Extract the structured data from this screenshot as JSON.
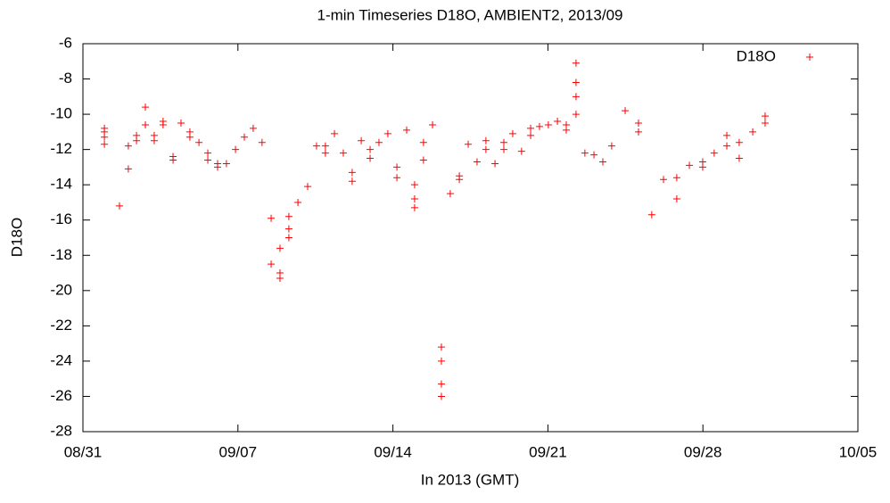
{
  "chart_data": {
    "type": "scatter",
    "title": "1-min Timeseries D18O, AMBIENT2, 2013/09",
    "xlabel": "In 2013 (GMT)",
    "ylabel": "D18O",
    "x": [
      0.97,
      0.97,
      0.97,
      0.97,
      1.65,
      2.05,
      2.05,
      2.42,
      2.42,
      2.82,
      2.82,
      3.22,
      3.22,
      3.62,
      3.62,
      4.07,
      4.07,
      4.43,
      4.83,
      4.83,
      5.24,
      5.64,
      5.64,
      6.08,
      6.08,
      6.48,
      6.89,
      7.29,
      7.69,
      8.09,
      8.5,
      8.5,
      8.9,
      8.9,
      8.9,
      9.3,
      9.3,
      9.3,
      9.71,
      10.15,
      10.55,
      10.95,
      10.95,
      11.36,
      11.76,
      12.16,
      12.16,
      12.57,
      12.97,
      12.97,
      13.37,
      13.77,
      14.18,
      14.18,
      14.62,
      14.98,
      14.98,
      14.98,
      15.38,
      15.38,
      15.79,
      16.19,
      16.19,
      16.19,
      16.19,
      16.59,
      17,
      17,
      17.4,
      17.8,
      18.2,
      18.2,
      18.61,
      19.01,
      19.01,
      19.41,
      19.81,
      20.22,
      20.22,
      20.62,
      21.02,
      21.43,
      21.83,
      21.83,
      22.27,
      22.27,
      22.27,
      22.27,
      22.67,
      23.08,
      23.48,
      23.88,
      24.49,
      25.09,
      25.09,
      25.69,
      26.22,
      26.82,
      26.82,
      27.39,
      27.99,
      27.99,
      28.51,
      29.08,
      29.08,
      29.64,
      29.64,
      30.25,
      30.81,
      30.81
    ],
    "series": [
      {
        "name": "D18O",
        "color": "#ff0000",
        "values": [
          -11,
          -11.3,
          -11.7,
          -10.8,
          -15.2,
          -11.8,
          -13.1,
          -11.5,
          -11.2,
          -10.6,
          -9.6,
          -11.2,
          -11.5,
          -10.6,
          -10.4,
          -12.4,
          -12.6,
          -10.5,
          -11,
          -11.3,
          -11.6,
          -12.2,
          -12.6,
          -13,
          -12.8,
          -12.8,
          -12,
          -11.3,
          -10.8,
          -11.6,
          -18.5,
          -15.9,
          -19,
          -19.3,
          -17.6,
          -16.5,
          -15.8,
          -17,
          -15,
          -14.1,
          -11.8,
          -12.2,
          -11.8,
          -11.1,
          -12.2,
          -13.8,
          -13.3,
          -11.5,
          -12.5,
          -12,
          -11.6,
          -11.1,
          -13.6,
          -13,
          -10.9,
          -14.8,
          -15.3,
          -14,
          -11.6,
          -12.6,
          -10.6,
          -24,
          -25.3,
          -23.2,
          -26,
          -14.5,
          -13.5,
          -13.7,
          -11.7,
          -12.7,
          -12,
          -11.5,
          -12.8,
          -12,
          -11.6,
          -11.1,
          -12.1,
          -11.2,
          -10.8,
          -10.7,
          -10.6,
          -10.4,
          -10.6,
          -10.9,
          -10,
          -7.1,
          -8.2,
          -9,
          -12.2,
          -12.3,
          -12.7,
          -11.8,
          -9.8,
          -10.5,
          -11,
          -15.7,
          -13.7,
          -14.8,
          -13.6,
          -12.9,
          -12.7,
          -13,
          -12.2,
          -11.8,
          -11.2,
          -11.6,
          -12.5,
          -11,
          -10.5,
          -10.1
        ]
      }
    ],
    "xlim": [
      0,
      35
    ],
    "xticks": [
      {
        "value": 0,
        "label": "08/31"
      },
      {
        "value": 7,
        "label": "09/07"
      },
      {
        "value": 14,
        "label": "09/14"
      },
      {
        "value": 21,
        "label": "09/21"
      },
      {
        "value": 28,
        "label": "09/28"
      },
      {
        "value": 35,
        "label": "10/05"
      }
    ],
    "ylim": [
      -28,
      -6
    ],
    "yticks": [
      -28,
      -26,
      -24,
      -22,
      -20,
      -18,
      -16,
      -14,
      -12,
      -10,
      -8,
      -6
    ],
    "legend": "top-right"
  }
}
